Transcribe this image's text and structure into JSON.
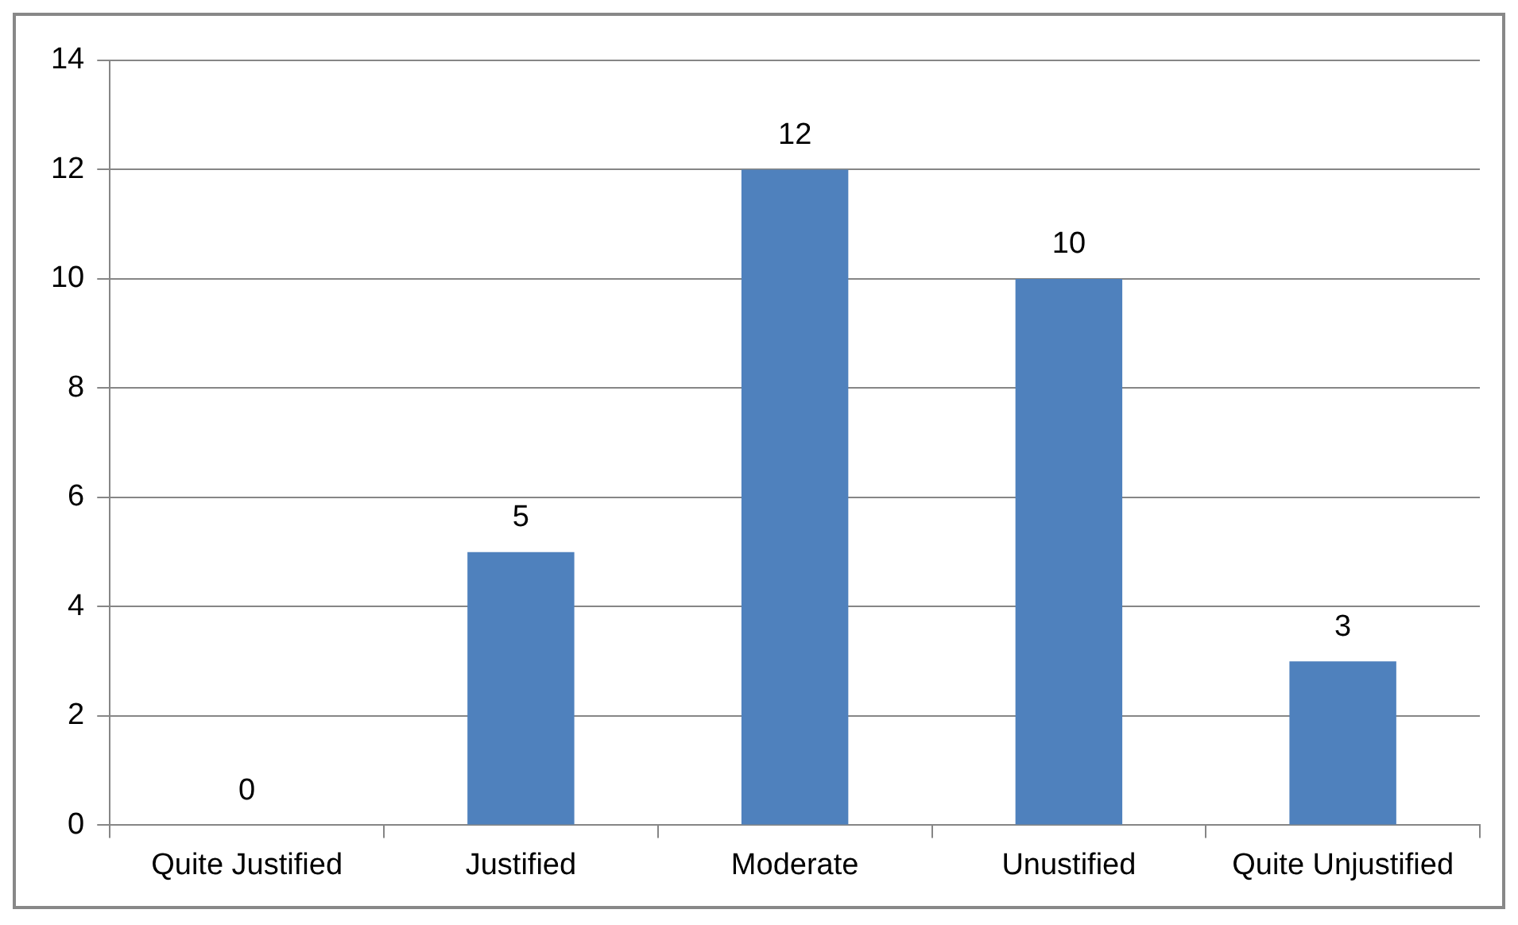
{
  "chart_data": {
    "type": "bar",
    "categories": [
      "Quite Justified",
      "Justified",
      "Moderate",
      "Unustified",
      "Quite Unjustified"
    ],
    "values": [
      0,
      5,
      12,
      10,
      3
    ],
    "color": "#4f81bd",
    "ylim": [
      0,
      14
    ],
    "yticks": [
      0,
      2,
      4,
      6,
      8,
      10,
      12,
      14
    ],
    "grid": "y",
    "data_labels": true,
    "legend": false
  }
}
